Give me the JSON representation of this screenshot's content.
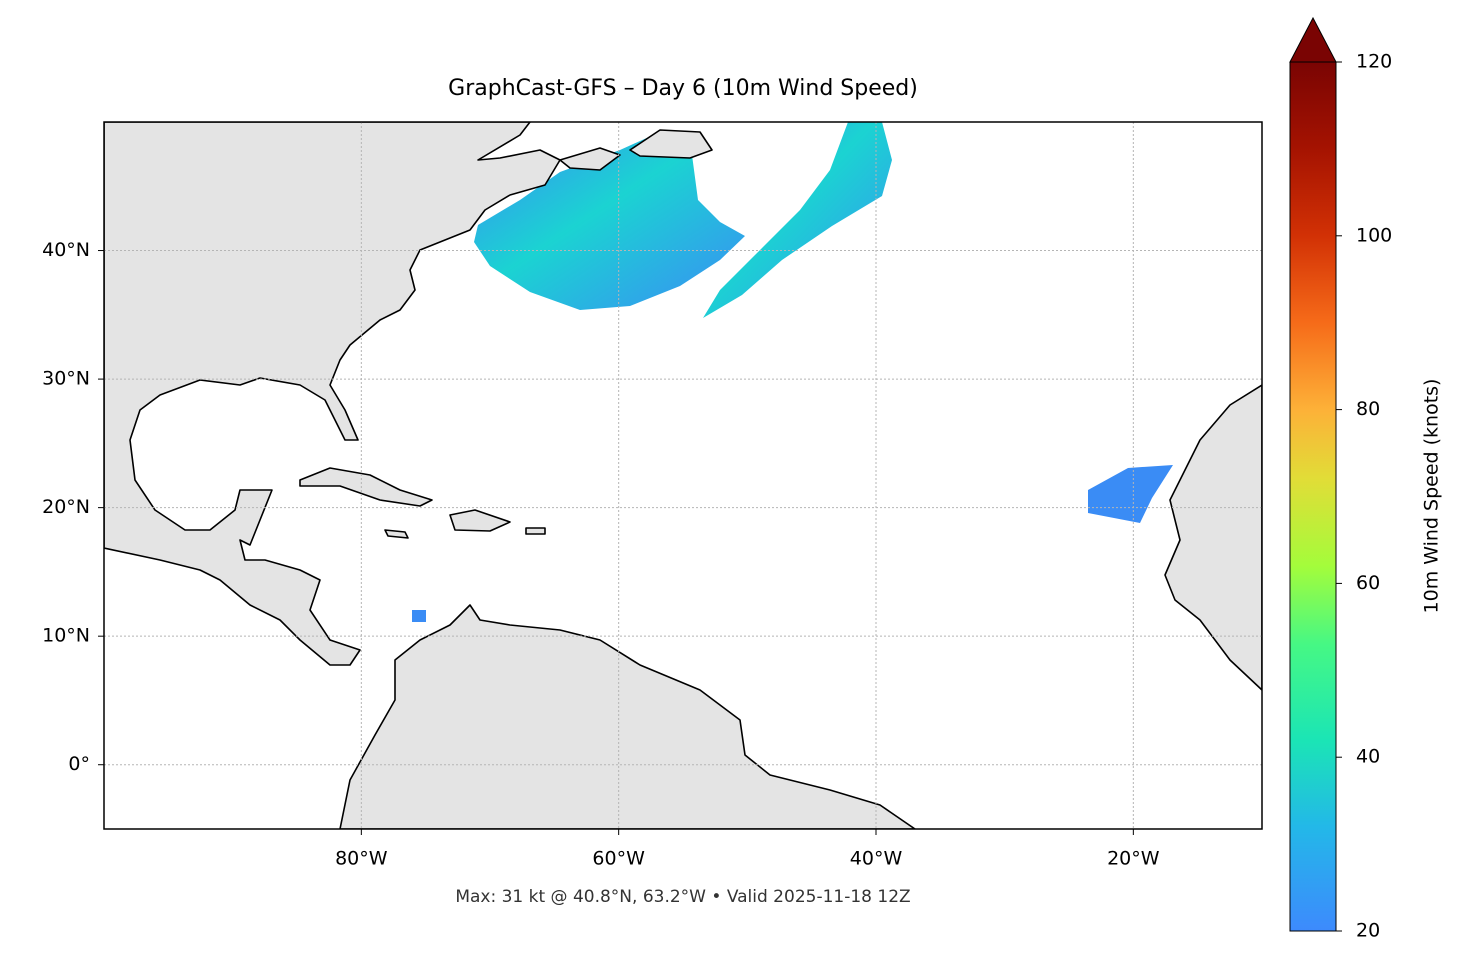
{
  "chart_data": {
    "type": "map",
    "title": "GraphCast-GFS – Day 6 (10m Wind Speed)",
    "footer": "Max: 31 kt @ 40.8°N, 63.2°W • Valid 2025-11-18 12Z",
    "xlim": [
      -100,
      -10
    ],
    "ylim": [
      -5,
      50
    ],
    "xticks": [
      {
        "value": -80,
        "label": "80°W"
      },
      {
        "value": -60,
        "label": "60°W"
      },
      {
        "value": -40,
        "label": "40°W"
      },
      {
        "value": -20,
        "label": "20°W"
      }
    ],
    "yticks": [
      {
        "value": 0,
        "label": "0°"
      },
      {
        "value": 10,
        "label": "10°N"
      },
      {
        "value": 20,
        "label": "20°N"
      },
      {
        "value": 30,
        "label": "30°N"
      },
      {
        "value": 40,
        "label": "40°N"
      }
    ],
    "grid": true,
    "colorbar": {
      "label": "10m Wind Speed (knots)",
      "lim": [
        20,
        120
      ],
      "ticks": [
        20,
        40,
        60,
        80,
        100,
        120
      ],
      "extend": "max"
    }
  }
}
